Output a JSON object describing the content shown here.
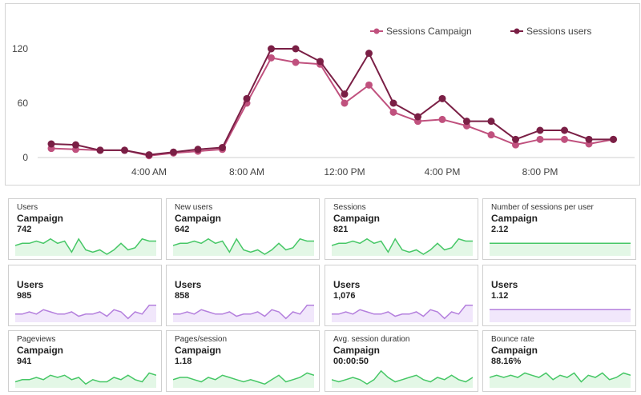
{
  "colors": {
    "campaign_line": "#c0517e",
    "users_line": "#7a1f45",
    "green_spark_stroke": "#46c766",
    "green_spark_fill": "#e3f7e6",
    "purple_spark_stroke": "#b47fdd",
    "purple_spark_fill": "#f1e7fb"
  },
  "chart_data": {
    "type": "line",
    "x_ticks": [
      "4:00 AM",
      "8:00 AM",
      "12:00 PM",
      "4:00 PM",
      "8:00 PM"
    ],
    "x_tick_hours": [
      4,
      8,
      12,
      16,
      20
    ],
    "hours": [
      0,
      1,
      2,
      3,
      4,
      5,
      6,
      7,
      8,
      9,
      10,
      11,
      12,
      13,
      14,
      15,
      16,
      17,
      18,
      19,
      20,
      21,
      22,
      23
    ],
    "y_ticks": [
      0,
      60,
      120
    ],
    "ylim": [
      0,
      130
    ],
    "legend_position": "top-right",
    "series": [
      {
        "name": "Sessions Campaign",
        "color": "#c0517e",
        "values": [
          10,
          9,
          8,
          8,
          2,
          5,
          7,
          9,
          60,
          110,
          105,
          103,
          60,
          80,
          50,
          40,
          42,
          35,
          25,
          14,
          20,
          20,
          15,
          20
        ]
      },
      {
        "name": "Sessions users",
        "color": "#7a1f45",
        "values": [
          15,
          14,
          8,
          8,
          3,
          6,
          9,
          11,
          65,
          120,
          120,
          106,
          70,
          115,
          60,
          45,
          65,
          40,
          40,
          20,
          30,
          30,
          20,
          20
        ]
      }
    ]
  },
  "cards": [
    {
      "metric": "Users",
      "segment": "Campaign",
      "value": "742",
      "spark": "green",
      "points": [
        4,
        5,
        5,
        6,
        5,
        7,
        5,
        6,
        1,
        7,
        2,
        1,
        2,
        0,
        2,
        5,
        2,
        3,
        7,
        6,
        6
      ]
    },
    {
      "metric": "New users",
      "segment": "Campaign",
      "value": "642",
      "spark": "green",
      "points": [
        4,
        5,
        5,
        6,
        5,
        7,
        5,
        6,
        1,
        7,
        2,
        1,
        2,
        0,
        2,
        5,
        2,
        3,
        7,
        6,
        6
      ]
    },
    {
      "metric": "Sessions",
      "segment": "Campaign",
      "value": "821",
      "spark": "green",
      "points": [
        4,
        5,
        5,
        6,
        5,
        7,
        5,
        6,
        1,
        7,
        2,
        1,
        2,
        0,
        2,
        5,
        2,
        3,
        7,
        6,
        6
      ]
    },
    {
      "metric": "Number of sessions per user",
      "segment": "Campaign",
      "value": "2.12",
      "spark": "green-flat",
      "points": [
        5,
        5,
        5,
        5,
        5,
        5,
        5,
        5,
        5,
        5,
        5,
        5,
        5,
        5,
        5,
        5,
        5,
        5,
        5,
        5,
        5
      ]
    },
    {
      "metric": "",
      "segment": "Users",
      "value": "985",
      "spark": "purple",
      "points": [
        3,
        3,
        4,
        3,
        5,
        4,
        3,
        3,
        4,
        2,
        3,
        3,
        4,
        2,
        5,
        4,
        1,
        4,
        3,
        7,
        7
      ]
    },
    {
      "metric": "",
      "segment": "Users",
      "value": "858",
      "spark": "purple",
      "points": [
        3,
        3,
        4,
        3,
        5,
        4,
        3,
        3,
        4,
        2,
        3,
        3,
        4,
        2,
        5,
        4,
        1,
        4,
        3,
        7,
        7
      ]
    },
    {
      "metric": "",
      "segment": "Users",
      "value": "1,076",
      "spark": "purple",
      "points": [
        3,
        3,
        4,
        3,
        5,
        4,
        3,
        3,
        4,
        2,
        3,
        3,
        4,
        2,
        5,
        4,
        1,
        4,
        3,
        7,
        7
      ]
    },
    {
      "metric": "",
      "segment": "Users",
      "value": "1.12",
      "spark": "purple-flat",
      "points": [
        5,
        5,
        5,
        5,
        5,
        5,
        5,
        5,
        5,
        5,
        5,
        5,
        5,
        5,
        5,
        5,
        5,
        5,
        5,
        5,
        5
      ]
    },
    {
      "metric": "Pageviews",
      "segment": "Campaign",
      "value": "941",
      "spark": "green",
      "points": [
        2,
        3,
        3,
        4,
        3,
        5,
        4,
        5,
        3,
        4,
        1,
        3,
        2,
        2,
        4,
        3,
        5,
        3,
        2,
        6,
        5
      ]
    },
    {
      "metric": "Pages/session",
      "segment": "Campaign",
      "value": "1.18",
      "spark": "green",
      "points": [
        3,
        4,
        4,
        3,
        2,
        4,
        3,
        5,
        4,
        3,
        2,
        3,
        2,
        1,
        3,
        5,
        2,
        3,
        4,
        6,
        5
      ]
    },
    {
      "metric": "Avg. session duration",
      "segment": "Campaign",
      "value": "00:00:50",
      "spark": "green",
      "points": [
        3,
        2,
        3,
        4,
        3,
        1,
        3,
        7,
        4,
        2,
        3,
        4,
        5,
        3,
        2,
        4,
        3,
        5,
        3,
        2,
        4
      ]
    },
    {
      "metric": "Bounce rate",
      "segment": "Campaign",
      "value": "88.16%",
      "spark": "green",
      "points": [
        4,
        5,
        4,
        5,
        4,
        6,
        5,
        4,
        6,
        3,
        5,
        4,
        6,
        2,
        5,
        4,
        6,
        3,
        4,
        6,
        5
      ]
    }
  ]
}
